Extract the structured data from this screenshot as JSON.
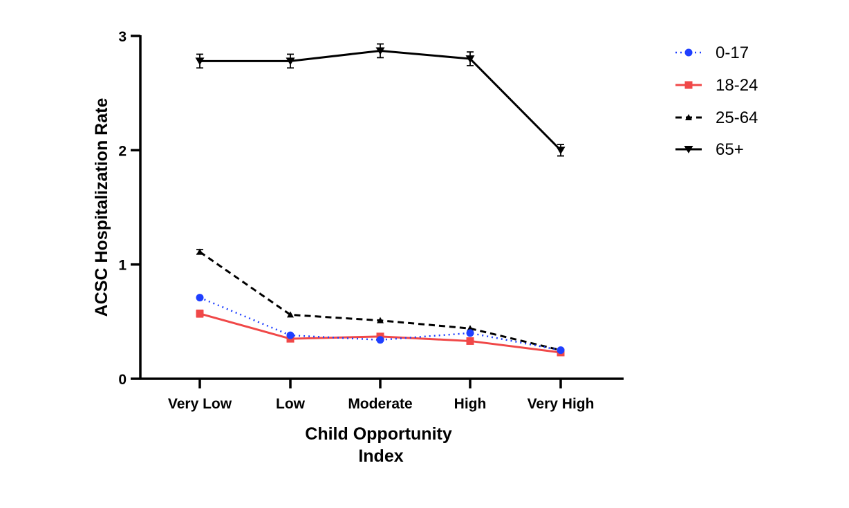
{
  "chart_data": {
    "type": "line",
    "xlabel": [
      "Child Opportunity",
      "Index"
    ],
    "ylabel": "ACSC Hospitalization Rate",
    "categories": [
      "Very Low",
      "Low",
      "Moderate",
      "High",
      "Very High"
    ],
    "ylim": [
      0,
      3
    ],
    "yticks": [
      0,
      1,
      2,
      3
    ],
    "legend_position": "top-right",
    "series": [
      {
        "name": "0-17",
        "values": [
          0.71,
          0.38,
          0.34,
          0.4,
          0.25
        ],
        "color": "#1f3fff",
        "marker": "circle",
        "line_style": "dotted",
        "error": [
          0.01,
          0.01,
          0.01,
          0.01,
          0.01
        ]
      },
      {
        "name": "18-24",
        "values": [
          0.57,
          0.35,
          0.37,
          0.33,
          0.23
        ],
        "color": "#f04848",
        "marker": "square",
        "line_style": "solid",
        "error": [
          0.03,
          0.02,
          0.02,
          0.02,
          0.02
        ]
      },
      {
        "name": "25-64",
        "values": [
          1.11,
          0.56,
          0.51,
          0.44,
          0.25
        ],
        "color": "#000000",
        "marker": "triangle-up",
        "line_style": "dashed",
        "error": [
          0.02,
          0.01,
          0.01,
          0.01,
          0.01
        ]
      },
      {
        "name": "65+",
        "values": [
          2.78,
          2.78,
          2.87,
          2.8,
          2.0
        ],
        "color": "#000000",
        "marker": "triangle-down",
        "line_style": "solid",
        "error": [
          0.06,
          0.06,
          0.06,
          0.06,
          0.05
        ]
      }
    ]
  }
}
